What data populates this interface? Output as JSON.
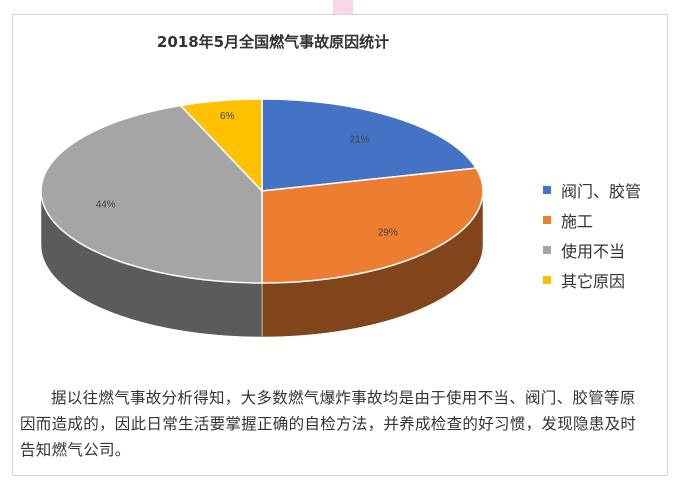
{
  "chart_data": {
    "type": "pie",
    "title": "2018年5月全国燃气事故原因统计",
    "categories": [
      "阀门、胶管",
      "施工",
      "使用不当",
      "其它原因"
    ],
    "values": [
      21,
      29,
      44,
      6
    ],
    "value_labels": [
      "21%",
      "29%",
      "44%",
      "6%"
    ],
    "colors": [
      "#4472c4",
      "#ed7d31",
      "#a5a5a5",
      "#ffc000"
    ],
    "legend_position": "right",
    "style": "3d"
  },
  "caption": "据以往燃气事故分析得知，大多数燃气爆炸事故均是由于使用不当、阀门、胶管等原因而造成的，因此日常生活要掌握正确的自检方法，并养成检查的好习惯，发现隐患及时告知燃气公司。"
}
